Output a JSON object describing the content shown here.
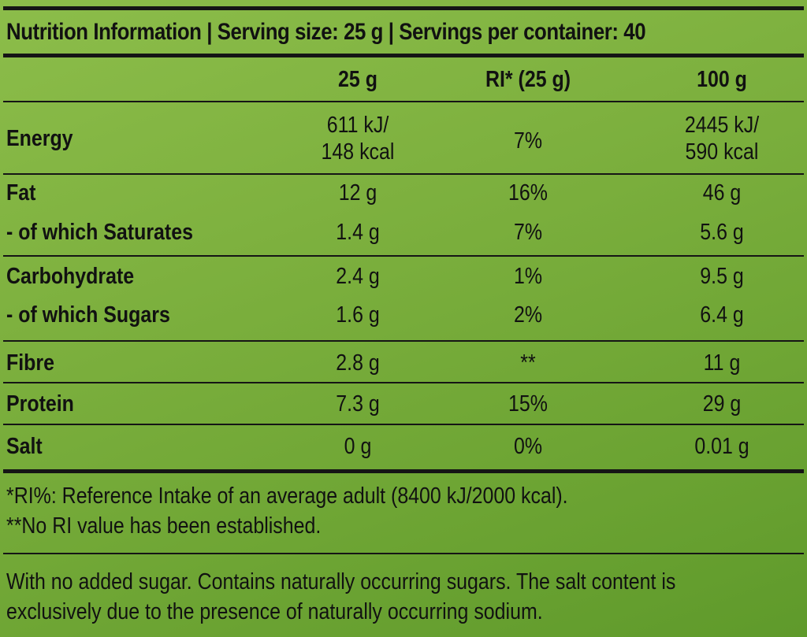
{
  "title": "Nutrition Information | Serving size: 25 g | Servings per container: 40",
  "columns": [
    "25 g",
    "RI* (25 g)",
    "100 g"
  ],
  "rows": {
    "energy": {
      "label": "Energy",
      "per_serving": [
        "611 kJ/",
        "148 kcal"
      ],
      "ri": "7%",
      "per_100g": [
        "2445 kJ/",
        "590 kcal"
      ]
    },
    "fat": {
      "label": "Fat",
      "per_serving": "12 g",
      "ri": "16%",
      "per_100g": "46 g"
    },
    "saturates": {
      "label": "- of which Saturates",
      "per_serving": "1.4 g",
      "ri": "7%",
      "per_100g": "5.6 g"
    },
    "carbohydrate": {
      "label": "Carbohydrate",
      "per_serving": "2.4 g",
      "ri": "1%",
      "per_100g": "9.5 g"
    },
    "sugars": {
      "label": "- of which Sugars",
      "per_serving": "1.6 g",
      "ri": "2%",
      "per_100g": "6.4 g"
    },
    "fibre": {
      "label": "Fibre",
      "per_serving": "2.8 g",
      "ri": "**",
      "per_100g": "11 g"
    },
    "protein": {
      "label": "Protein",
      "per_serving": "7.3 g",
      "ri": "15%",
      "per_100g": "29 g"
    },
    "salt": {
      "label": "Salt",
      "per_serving": "0 g",
      "ri": "0%",
      "per_100g": "0.01 g"
    }
  },
  "notes": [
    "*RI%: Reference Intake of an average adult (8400 kJ/2000 kcal).",
    "**No RI value has been established."
  ],
  "disclaimer": [
    "With no added sugar. Contains naturally occurring sugars. The salt content is",
    "exclusively due to the presence of naturally occurring sodium."
  ],
  "colors": {
    "background": "#7eb13f",
    "text": "#111111",
    "rules": "#151515"
  }
}
